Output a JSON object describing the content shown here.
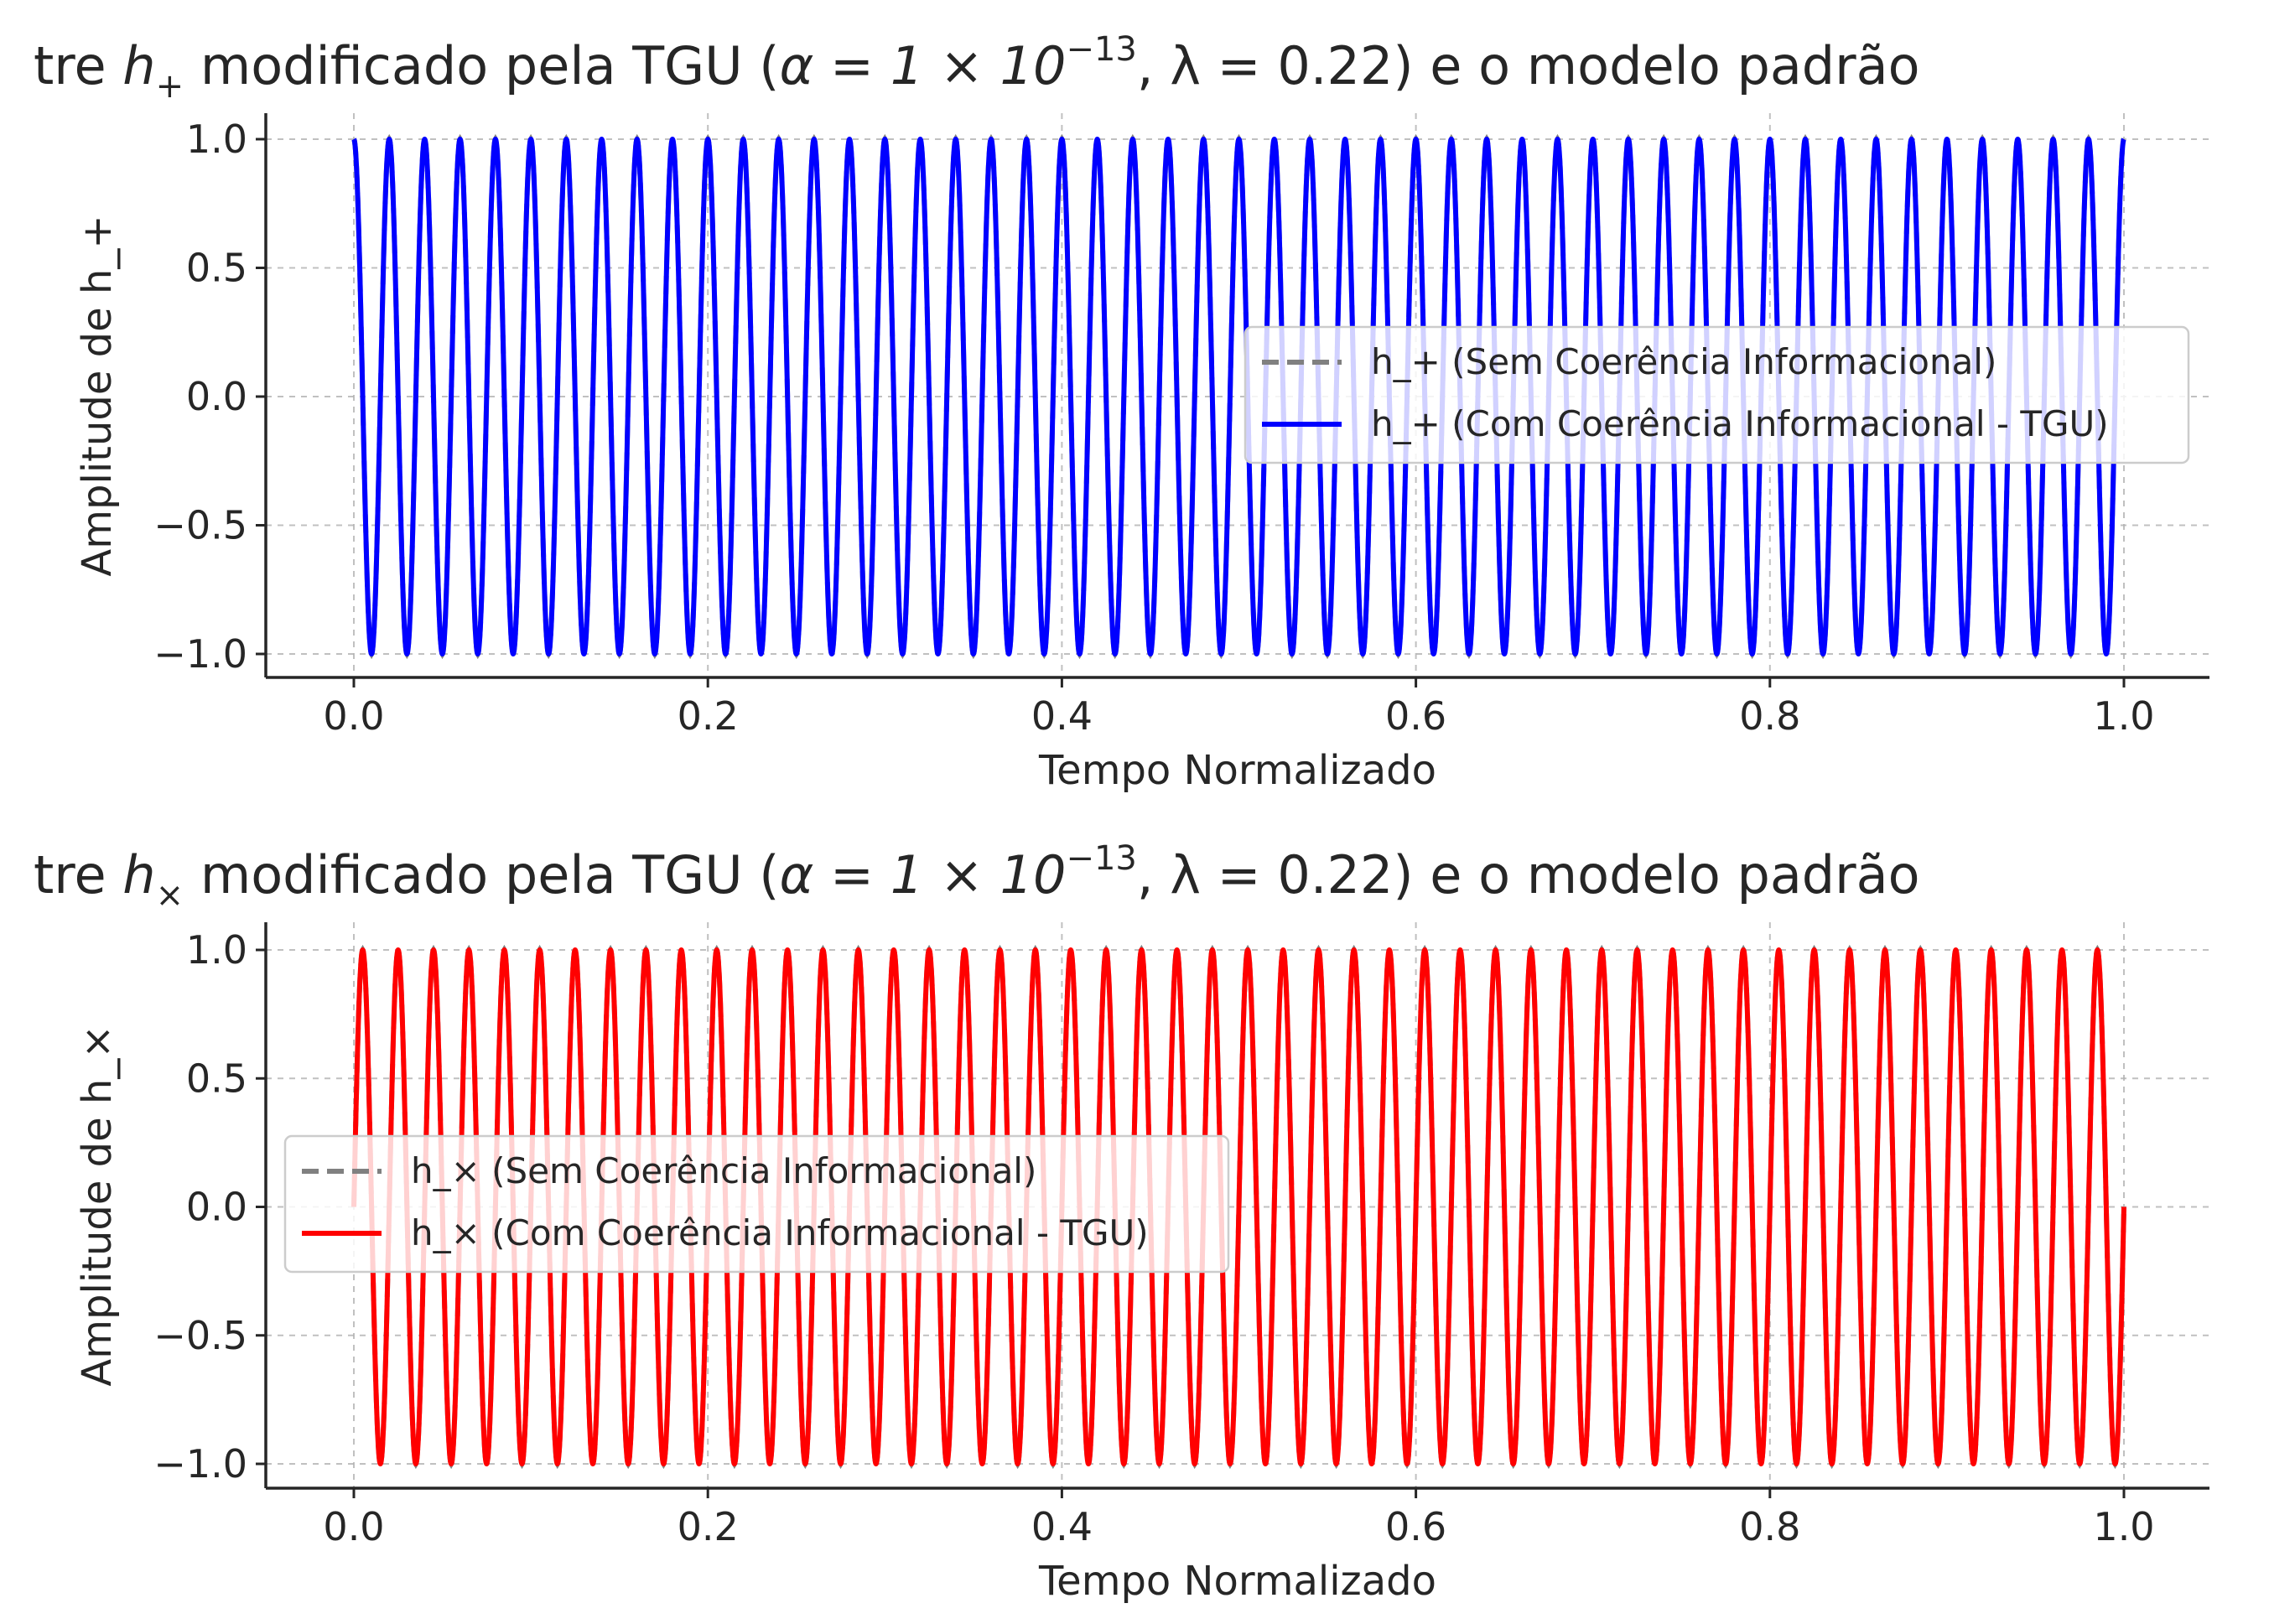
{
  "chart_data": [
    {
      "type": "line",
      "title_pre": "tre ",
      "title_sym": "h",
      "title_sub": "+",
      "title_mid": " modificado pela TGU (",
      "title_alpha": "α = 1 × 10",
      "title_exp": "−13",
      "title_lambda": ", λ = 0.22) e o modelo padrão",
      "xlabel": "Tempo Normalizado",
      "ylabel": "Amplitude de h_+",
      "xlim": [
        -0.05,
        1.05
      ],
      "ylim": [
        -1.1,
        1.1
      ],
      "xticks": [
        0.0,
        0.2,
        0.4,
        0.6,
        0.8,
        1.0
      ],
      "xtick_labels": [
        "0.0",
        "0.2",
        "0.4",
        "0.6",
        "0.8",
        "1.0"
      ],
      "yticks": [
        1.0,
        0.5,
        0.0,
        -0.5,
        -1.0
      ],
      "ytick_labels": [
        "1.0",
        "0.5",
        "0.0",
        "−0.5",
        "−1.0"
      ],
      "grid": true,
      "legend_position": "center-right",
      "signal": {
        "function": "cos",
        "cycles": 50,
        "phase_cycles": 0.0,
        "x_start": 0.0,
        "x_end": 1.0
      },
      "series": [
        {
          "name": "h_+ (Sem Coerência Informacional)",
          "style": "dashed",
          "color": "#808080"
        },
        {
          "name": "h_+ (Com Coerência Informacional - TGU)",
          "style": "solid",
          "color": "#0000ff"
        }
      ]
    },
    {
      "type": "line",
      "title_pre": "tre ",
      "title_sym": "h",
      "title_sub": "×",
      "title_mid": " modificado pela TGU (",
      "title_alpha": "α = 1 × 10",
      "title_exp": "−13",
      "title_lambda": ", λ = 0.22) e o modelo padrão",
      "xlabel": "Tempo Normalizado",
      "ylabel": "Amplitude de h_×",
      "xlim": [
        -0.05,
        1.05
      ],
      "ylim": [
        -1.1,
        1.1
      ],
      "xticks": [
        0.0,
        0.2,
        0.4,
        0.6,
        0.8,
        1.0
      ],
      "xtick_labels": [
        "0.0",
        "0.2",
        "0.4",
        "0.6",
        "0.8",
        "1.0"
      ],
      "yticks": [
        1.0,
        0.5,
        0.0,
        -0.5,
        -1.0
      ],
      "ytick_labels": [
        "1.0",
        "0.5",
        "0.0",
        "−0.5",
        "−1.0"
      ],
      "grid": true,
      "legend_position": "center-left",
      "signal": {
        "function": "sin",
        "cycles": 50,
        "phase_cycles": 0.0,
        "x_start": 0.0,
        "x_end": 1.0
      },
      "series": [
        {
          "name": "h_× (Sem Coerência Informacional)",
          "style": "dashed",
          "color": "#808080"
        },
        {
          "name": "h_× (Com Coerência Informacional - TGU)",
          "style": "solid",
          "color": "#ff0000"
        }
      ]
    }
  ]
}
